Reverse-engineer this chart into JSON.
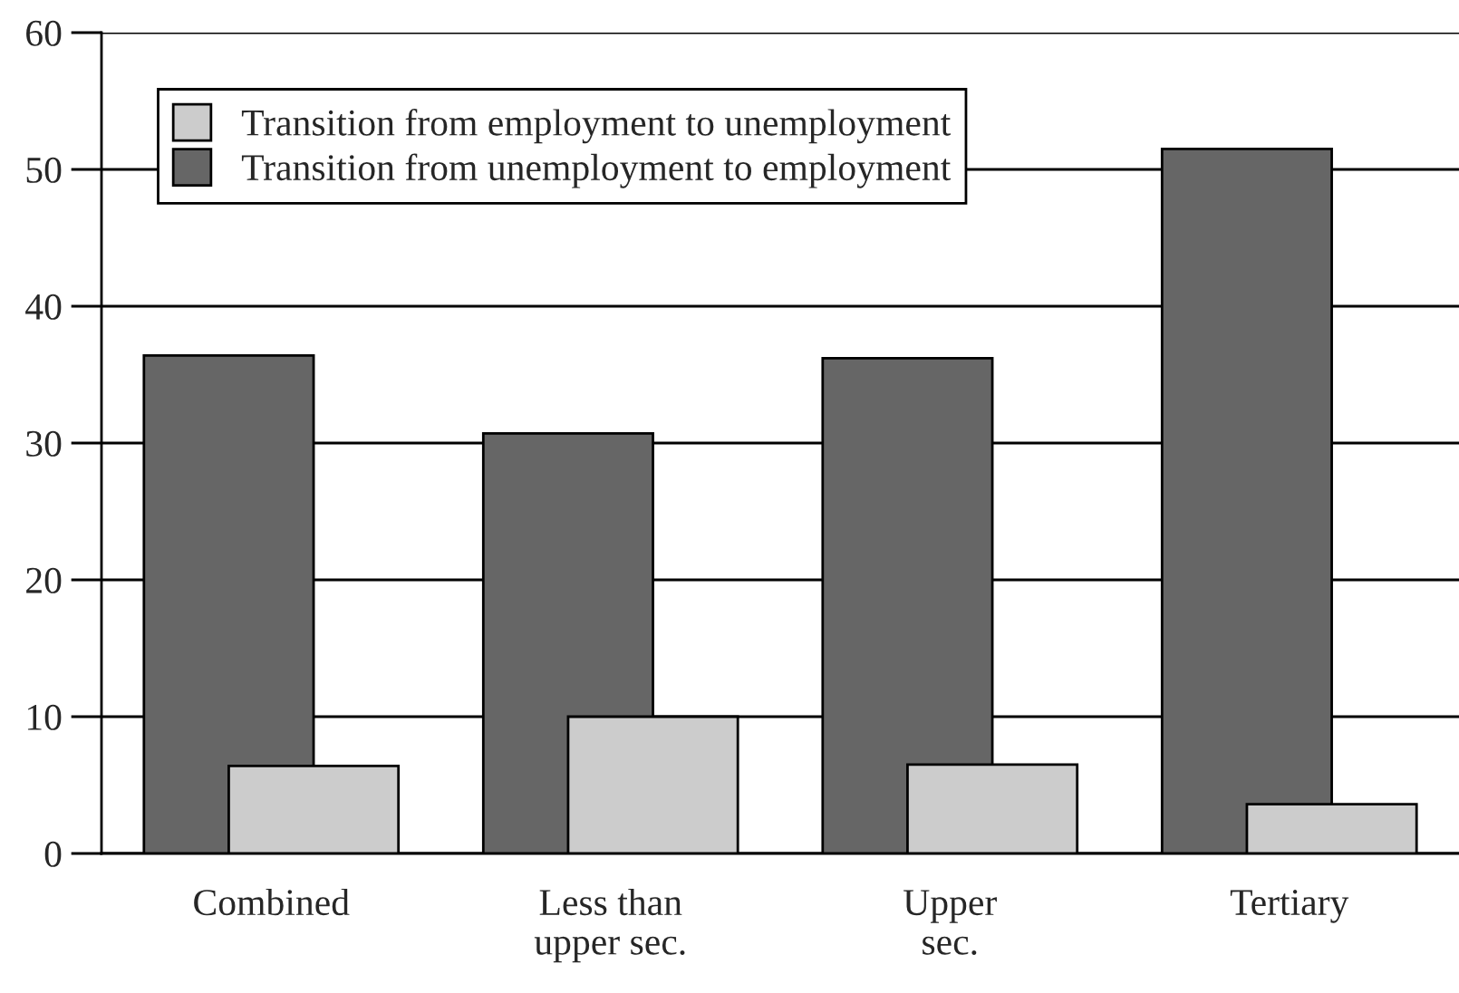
{
  "chart_data": {
    "type": "bar",
    "categories": [
      "Combined",
      "Less than\nupper sec.",
      "Upper\nsec.",
      "Tertiary"
    ],
    "series": [
      {
        "name": "Transition from employment to unemployment",
        "color": "#cccccc",
        "values": [
          6.4,
          10.0,
          6.5,
          3.6
        ]
      },
      {
        "name": "Transition from unemployment to employment",
        "color": "#666666",
        "values": [
          36.4,
          30.7,
          36.2,
          51.5
        ]
      }
    ],
    "ylim": [
      0,
      60
    ],
    "yticks": [
      0,
      10,
      20,
      30,
      40,
      50,
      60
    ],
    "grid": "y",
    "legend": "top left"
  }
}
